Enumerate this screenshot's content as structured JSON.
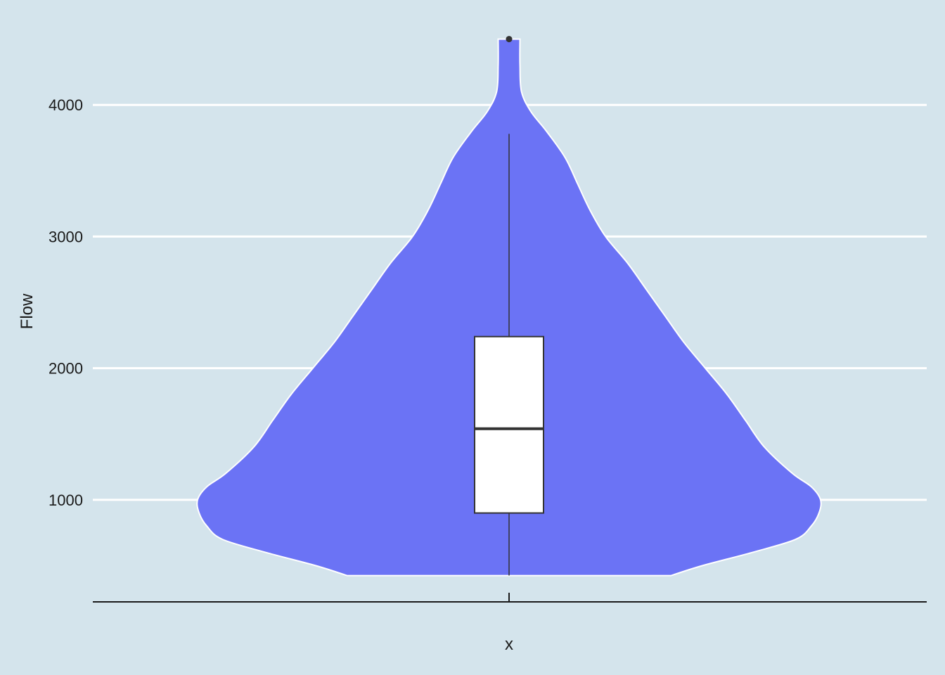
{
  "chart_data": {
    "type": "violin",
    "xlabel": "x",
    "ylabel": "Flow",
    "categories": [
      ""
    ],
    "y_ticks": [
      1000,
      2000,
      3000,
      4000
    ],
    "ylim": [
      225,
      4690
    ],
    "grid": "horizontal-major",
    "colors": {
      "background": "#d4e4ec",
      "violin_fill": "#6b73f5",
      "violin_outline": "#ffffff",
      "gridline": "#ffffff",
      "box_fill": "#ffffff",
      "box_outline": "#333333"
    },
    "violin": {
      "min": 425,
      "max": 4500,
      "density_profile": [
        [
          425,
          0.52
        ],
        [
          500,
          0.62
        ],
        [
          600,
          0.78
        ],
        [
          700,
          0.92
        ],
        [
          800,
          0.97
        ],
        [
          900,
          0.995
        ],
        [
          1000,
          1.0
        ],
        [
          1100,
          0.97
        ],
        [
          1200,
          0.91
        ],
        [
          1400,
          0.82
        ],
        [
          1600,
          0.76
        ],
        [
          1800,
          0.7
        ],
        [
          2000,
          0.63
        ],
        [
          2200,
          0.56
        ],
        [
          2400,
          0.5
        ],
        [
          2600,
          0.44
        ],
        [
          2800,
          0.38
        ],
        [
          3000,
          0.31
        ],
        [
          3200,
          0.26
        ],
        [
          3400,
          0.22
        ],
        [
          3600,
          0.18
        ],
        [
          3800,
          0.12
        ],
        [
          3950,
          0.07
        ],
        [
          4100,
          0.04
        ],
        [
          4300,
          0.035
        ],
        [
          4500,
          0.035
        ]
      ]
    },
    "box": {
      "whisker_low": 425,
      "q1": 900,
      "median": 1540,
      "q3": 2240,
      "whisker_high": 3780,
      "outliers": [
        4500
      ]
    }
  }
}
